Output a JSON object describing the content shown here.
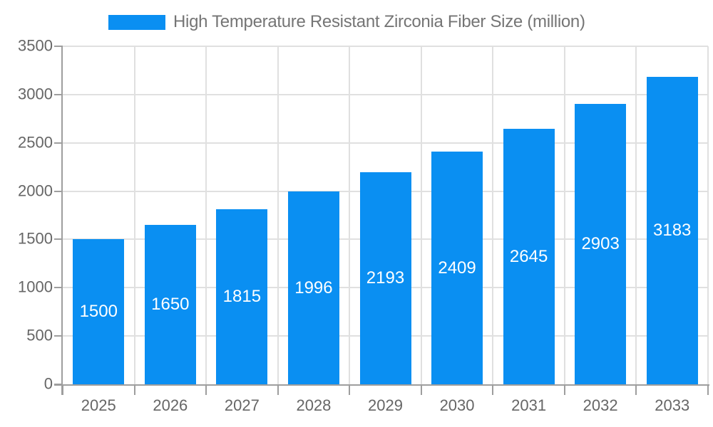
{
  "legend": {
    "label": "High Temperature Resistant Zirconia Fiber Size (million)"
  },
  "chart_data": {
    "type": "bar",
    "title": "High Temperature Resistant Zirconia Fiber Size (million)",
    "categories": [
      "2025",
      "2026",
      "2027",
      "2028",
      "2029",
      "2030",
      "2031",
      "2032",
      "2033"
    ],
    "values": [
      1500,
      1650,
      1815,
      1996,
      2193,
      2409,
      2645,
      2903,
      3183
    ],
    "xlabel": "",
    "ylabel": "",
    "ylim": [
      0,
      3500
    ],
    "ytick_step": 500,
    "yticks": [
      0,
      500,
      1000,
      1500,
      2000,
      2500,
      3000,
      3500
    ],
    "grid": true,
    "legend_position": "top",
    "value_label_position": "inside-center"
  },
  "colors": {
    "bar": "#0a8ff2",
    "grid": "#e0e0e0",
    "axis": "#9e9e9e",
    "tick_label": "#666666",
    "legend_text": "#757575",
    "value_label": "#ffffff",
    "background": "#ffffff"
  }
}
